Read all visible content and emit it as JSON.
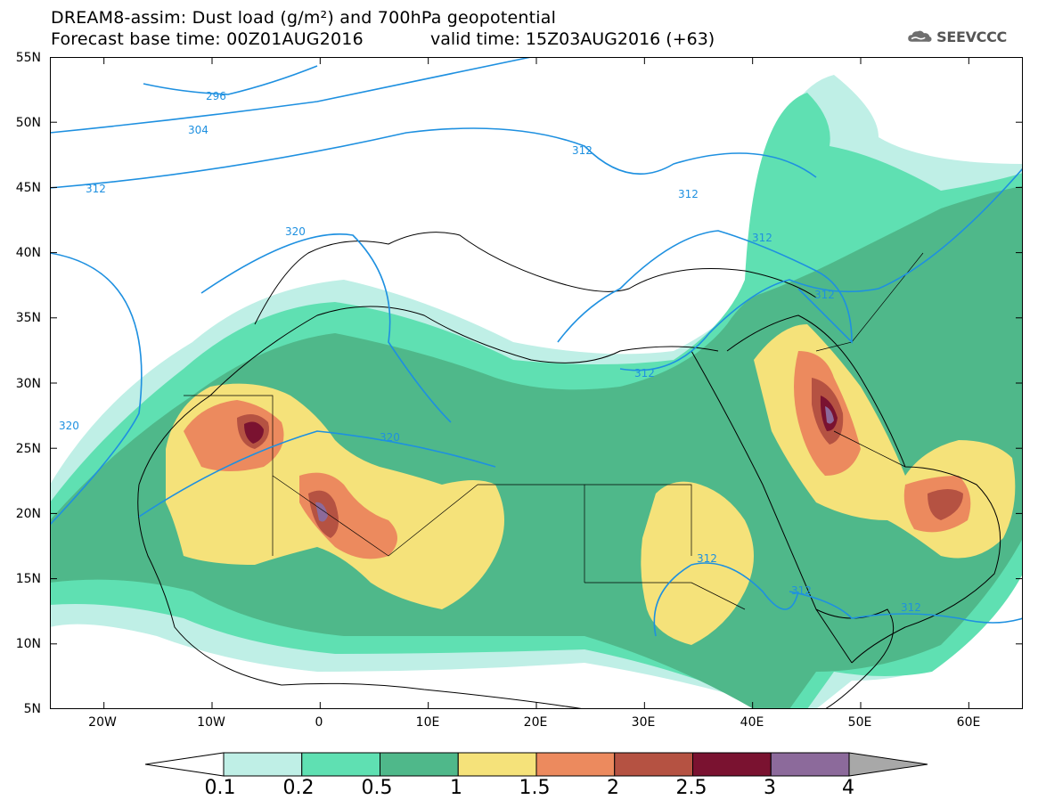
{
  "header": {
    "line1": "DREAM8-assim: Dust load (g/m²) and 700hPa geopotential",
    "line2_left": "Forecast base time: 00Z01AUG2016",
    "line2_right": "valid time: 15Z03AUG2016 (+63)"
  },
  "logo": {
    "text": "SEEVCCC",
    "icon": "cloud-logo-icon"
  },
  "axes": {
    "lat_labels": [
      "55N",
      "50N",
      "45N",
      "40N",
      "35N",
      "30N",
      "25N",
      "20N",
      "15N",
      "10N",
      "5N"
    ],
    "lon_labels": [
      "20W",
      "10W",
      "0",
      "10E",
      "20E",
      "30E",
      "40E",
      "50E",
      "60E"
    ],
    "lat_range": [
      5,
      55
    ],
    "lon_range": [
      -25,
      65
    ]
  },
  "contours": {
    "color": "#1e90e0",
    "labels": [
      "296",
      "304",
      "312",
      "312",
      "312",
      "312",
      "312",
      "312",
      "312",
      "312",
      "312",
      "320",
      "320",
      "320"
    ]
  },
  "colorbar": {
    "levels": [
      "0.1",
      "0.2",
      "0.5",
      "1",
      "1.5",
      "2",
      "2.5",
      "3",
      "4"
    ],
    "colors": [
      "#bfefe6",
      "#5fe0b2",
      "#4fb88a",
      "#f5e27a",
      "#ec8a5e",
      "#b55242",
      "#7a1230",
      "#8c6a9b"
    ],
    "under_color": "#ffffff",
    "over_color": "#a8a8a8"
  }
}
